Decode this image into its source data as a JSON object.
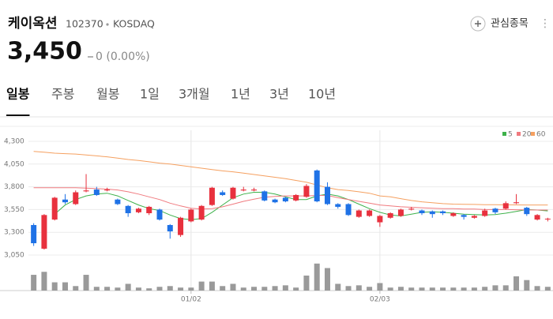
{
  "header": {
    "name": "케이옥션",
    "code": "102370",
    "market": "KOSDAQ",
    "watch": "관심종목",
    "price": "3,450",
    "change": "0 (0.00%)"
  },
  "tabs": [
    "일봉",
    "주봉",
    "월봉",
    "1일",
    "3개월",
    "1년",
    "3년",
    "10년"
  ],
  "selected_tab": 0,
  "chart_data": {
    "type": "candlestick",
    "categories": [
      null,
      null,
      null,
      null,
      null,
      null,
      null,
      null,
      null,
      null,
      null,
      null,
      null,
      null,
      null,
      "01/02",
      null,
      null,
      null,
      null,
      null,
      null,
      null,
      null,
      null,
      null,
      null,
      null,
      null,
      null,
      null,
      null,
      null,
      "02/03",
      null,
      null,
      null,
      null,
      null,
      null,
      null,
      null,
      null,
      null,
      null,
      null,
      null,
      null,
      null,
      null
    ],
    "open": [
      3380,
      3120,
      3440,
      3660,
      3610,
      3750,
      3770,
      3760,
      3660,
      3590,
      3520,
      3510,
      3550,
      3380,
      3270,
      3420,
      3440,
      3600,
      3740,
      3670,
      3760,
      3760,
      3750,
      3660,
      3680,
      3650,
      3690,
      3980,
      3800,
      3610,
      3610,
      3470,
      3480,
      3410,
      3460,
      3480,
      3550,
      3540,
      3530,
      3530,
      3480,
      3490,
      3460,
      3480,
      3560,
      3560,
      3620,
      3570,
      3440,
      3450
    ],
    "high": [
      3400,
      3500,
      3690,
      3720,
      3760,
      3940,
      3800,
      3790,
      3670,
      3600,
      3570,
      3590,
      3560,
      3390,
      3470,
      3560,
      3600,
      3800,
      3760,
      3800,
      3800,
      3790,
      3760,
      3670,
      3690,
      3720,
      3830,
      3990,
      3850,
      3620,
      3620,
      3550,
      3550,
      3490,
      3520,
      3560,
      3580,
      3550,
      3540,
      3540,
      3520,
      3500,
      3490,
      3560,
      3570,
      3640,
      3720,
      3580,
      3500,
      3460
    ],
    "low": [
      3150,
      3110,
      3430,
      3610,
      3600,
      3740,
      3700,
      3750,
      3600,
      3470,
      3510,
      3490,
      3430,
      3230,
      3250,
      3410,
      3430,
      3590,
      3700,
      3660,
      3750,
      3750,
      3640,
      3620,
      3630,
      3640,
      3680,
      3630,
      3600,
      3560,
      3480,
      3460,
      3470,
      3360,
      3450,
      3470,
      3540,
      3490,
      3460,
      3490,
      3470,
      3440,
      3450,
      3470,
      3500,
      3550,
      3610,
      3480,
      3430,
      3420
    ],
    "close": [
      3180,
      3490,
      3680,
      3630,
      3740,
      3760,
      3710,
      3770,
      3610,
      3510,
      3560,
      3580,
      3440,
      3310,
      3460,
      3550,
      3590,
      3790,
      3710,
      3790,
      3770,
      3770,
      3650,
      3630,
      3640,
      3710,
      3810,
      3640,
      3610,
      3580,
      3490,
      3540,
      3540,
      3480,
      3510,
      3550,
      3560,
      3510,
      3500,
      3510,
      3510,
      3470,
      3480,
      3540,
      3520,
      3620,
      3630,
      3500,
      3490,
      3450
    ],
    "up_color": "#e8313e",
    "down_color": "#1f72e6",
    "ylim": [
      3050,
      4300
    ],
    "yticks": [
      {
        "value": 4300,
        "label": "4,300"
      },
      {
        "value": 4050,
        "label": "4,050"
      },
      {
        "value": 3800,
        "label": "3,800"
      },
      {
        "value": 3550,
        "label": "3,550"
      },
      {
        "value": 3300,
        "label": "3,300"
      },
      {
        "value": 3050,
        "label": "3,050"
      }
    ],
    "grid": true,
    "legend": "top-right",
    "series": [
      {
        "name": "5",
        "color": "#3db14a",
        "values": [
          null,
          null,
          3500,
          3600,
          3660,
          3700,
          3720,
          3730,
          3700,
          3650,
          3600,
          3560,
          3540,
          3490,
          3450,
          3440,
          3450,
          3520,
          3600,
          3680,
          3720,
          3740,
          3740,
          3720,
          3690,
          3660,
          3660,
          3700,
          3720,
          3700,
          3660,
          3610,
          3560,
          3520,
          3490,
          3480,
          3500,
          3520,
          3525,
          3520,
          3510,
          3500,
          3495,
          3490,
          3495,
          3510,
          3530,
          3550,
          3545,
          3535
        ]
      },
      {
        "name": "20",
        "color": "#f07a7f",
        "values": [
          3790,
          3790,
          3790,
          3790,
          3790,
          3785,
          3780,
          3775,
          3765,
          3745,
          3720,
          3690,
          3660,
          3620,
          3590,
          3565,
          3555,
          3560,
          3580,
          3610,
          3640,
          3665,
          3685,
          3695,
          3700,
          3700,
          3700,
          3705,
          3705,
          3680,
          3660,
          3640,
          3620,
          3600,
          3590,
          3580,
          3575,
          3570,
          3565,
          3560,
          3560,
          3555,
          3555,
          3550,
          3550,
          3550,
          3548,
          3546,
          3545,
          3545
        ]
      },
      {
        "name": "60",
        "color": "#f5a060",
        "values": [
          4190,
          4180,
          4170,
          4165,
          4160,
          4150,
          4140,
          4130,
          4115,
          4100,
          4090,
          4075,
          4060,
          4050,
          4035,
          4020,
          4005,
          3990,
          3975,
          3965,
          3950,
          3935,
          3920,
          3905,
          3890,
          3870,
          3850,
          3820,
          3790,
          3770,
          3760,
          3745,
          3730,
          3700,
          3690,
          3670,
          3650,
          3635,
          3625,
          3615,
          3610,
          3608,
          3606,
          3604,
          3603,
          3602,
          3601,
          3600,
          3600,
          3600
        ]
      }
    ],
    "volume": {
      "color": "#9a9a9a",
      "ylim": [
        0,
        40
      ],
      "values": [
        21,
        25,
        11,
        11,
        6,
        21,
        5,
        5,
        4,
        9,
        4,
        3,
        5,
        6,
        4,
        4,
        12,
        12,
        6,
        9,
        4,
        5,
        5,
        6,
        7,
        4,
        20,
        36,
        30,
        9,
        6,
        7,
        5,
        10,
        4,
        5,
        4,
        4,
        4,
        4,
        4,
        4,
        4,
        5,
        7,
        7,
        19,
        14,
        6,
        5
      ]
    }
  }
}
